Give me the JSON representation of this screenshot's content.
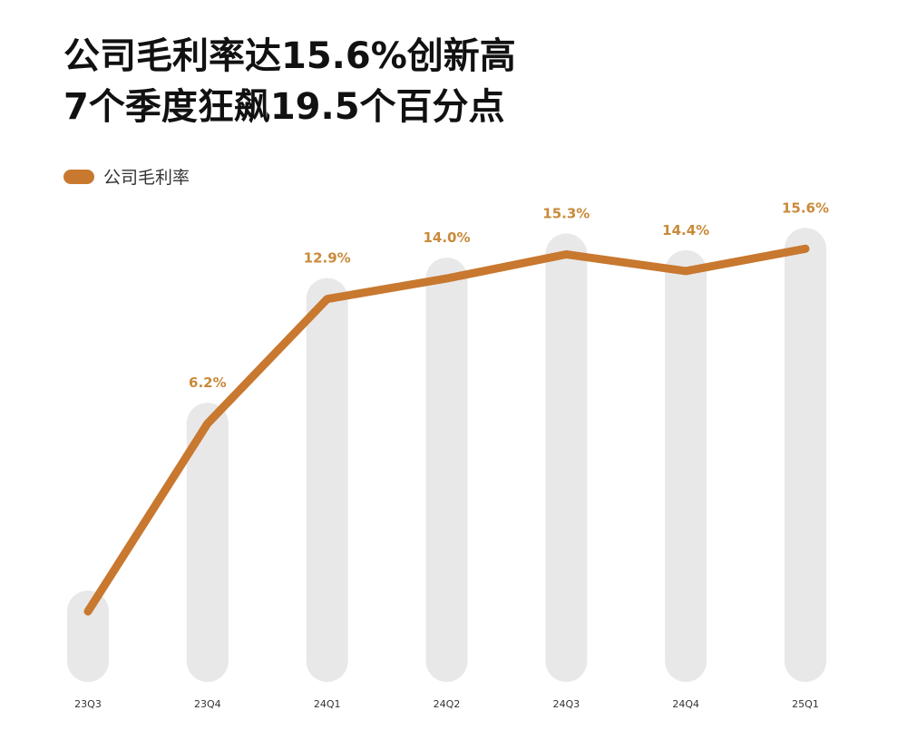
{
  "title": {
    "line1": "公司毛利率达15.6%创新高",
    "line2": "7个季度狂飙19.5个百分点"
  },
  "colors": {
    "line": "#c8782f",
    "label": "#c98a3a",
    "bar": "#e8e8e8"
  },
  "chart_data": {
    "type": "line",
    "title": "公司毛利率达15.6%创新高 7个季度狂飙19.5个百分点",
    "legend": "top-left",
    "categories": [
      "23Q3",
      "23Q4",
      "24Q1",
      "24Q2",
      "24Q3",
      "24Q4",
      "25Q1"
    ],
    "series": [
      {
        "name": "公司毛利率",
        "values": [
          -3.9,
          6.2,
          12.9,
          14.0,
          15.3,
          14.4,
          15.6
        ],
        "labels": [
          "",
          "6.2%",
          "12.9%",
          "14.0%",
          "15.3%",
          "14.4%",
          "15.6%"
        ]
      }
    ],
    "ylim": [
      -5.5,
      16.2
    ],
    "grid": false
  }
}
